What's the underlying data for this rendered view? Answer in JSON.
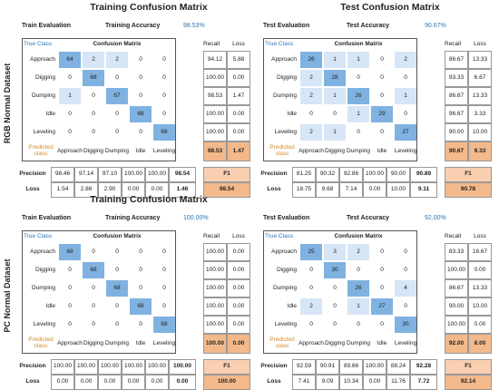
{
  "row_labels": [
    "RGB Normal Dataset",
    "PC Normal Dataset"
  ],
  "labels": {
    "true_class": "True Class",
    "matrix": "Confusion Matrix",
    "recall": "Recall",
    "loss": "Loss",
    "predicted": "Predicted class",
    "precision": "Precision",
    "f1": "F1"
  },
  "classes": [
    "Approach",
    "Digging",
    "Dumping",
    "Idle",
    "Leveling"
  ],
  "panels": [
    {
      "title": "Training Confusion Matrix",
      "eval": "Train Evaluation",
      "acc_label": "Training Accuracy",
      "acc": "98.53%",
      "matrix": [
        [
          64,
          2,
          2,
          0,
          0
        ],
        [
          0,
          68,
          0,
          0,
          0
        ],
        [
          1,
          0,
          67,
          0,
          0
        ],
        [
          0,
          0,
          0,
          68,
          0
        ],
        [
          0,
          0,
          0,
          0,
          68
        ]
      ],
      "recall": [
        "94.12",
        "100.00",
        "98.53",
        "100.00",
        "100.00"
      ],
      "loss": [
        "5.88",
        "0.00",
        "1.47",
        "0.00",
        "0.00"
      ],
      "total_recall": "98.53",
      "total_loss": "1.47",
      "precision": [
        "98.46",
        "97.14",
        "97.10",
        "100.00",
        "100.00"
      ],
      "overall_precision": "98.54",
      "precision_loss": [
        "1.54",
        "2.86",
        "2.90",
        "0.00",
        "0.00"
      ],
      "overall_loss": "1.46",
      "f1": "98.54"
    },
    {
      "title": "Test Confusion Matrix",
      "eval": "Test Evaluation",
      "acc_label": "Test Accuracy",
      "acc": "90.67%",
      "matrix": [
        [
          26,
          1,
          1,
          0,
          2
        ],
        [
          2,
          28,
          0,
          0,
          0
        ],
        [
          2,
          1,
          26,
          0,
          1
        ],
        [
          0,
          0,
          1,
          29,
          0
        ],
        [
          2,
          1,
          0,
          0,
          27
        ]
      ],
      "recall": [
        "86.67",
        "93.33",
        "86.67",
        "96.67",
        "90.00"
      ],
      "loss": [
        "13.33",
        "6.67",
        "13.33",
        "3.33",
        "10.00"
      ],
      "total_recall": "90.67",
      "total_loss": "9.33",
      "precision": [
        "81.25",
        "90.32",
        "92.86",
        "100.00",
        "90.00"
      ],
      "overall_precision": "90.89",
      "precision_loss": [
        "18.75",
        "9.68",
        "7.14",
        "0.00",
        "10.00"
      ],
      "overall_loss": "9.11",
      "f1": "90.78"
    },
    {
      "title": "Training Confusion Matrix",
      "eval": "Train Evaluation",
      "acc_label": "Training Accuracy",
      "acc": "100.00%",
      "matrix": [
        [
          68,
          0,
          0,
          0,
          0
        ],
        [
          0,
          68,
          0,
          0,
          0
        ],
        [
          0,
          0,
          68,
          0,
          0
        ],
        [
          0,
          0,
          0,
          68,
          0
        ],
        [
          0,
          0,
          0,
          0,
          68
        ]
      ],
      "recall": [
        "100.00",
        "100.00",
        "100.00",
        "100.00",
        "100.00"
      ],
      "loss": [
        "0.00",
        "0.00",
        "0.00",
        "0.00",
        "0.00"
      ],
      "total_recall": "100.00",
      "total_loss": "0.00",
      "precision": [
        "100.00",
        "100.00",
        "100.00",
        "100.00",
        "100.00"
      ],
      "overall_precision": "100.00",
      "precision_loss": [
        "0.00",
        "0.00",
        "0.00",
        "0.00",
        "0.00"
      ],
      "overall_loss": "0.00",
      "f1": "100.00"
    },
    {
      "eval": "Test Evaluation",
      "acc_label": "Test Accuracy",
      "acc": "92.00%",
      "matrix": [
        [
          25,
          3,
          2,
          0,
          0
        ],
        [
          0,
          30,
          0,
          0,
          0
        ],
        [
          0,
          0,
          26,
          0,
          4
        ],
        [
          2,
          0,
          1,
          27,
          0
        ],
        [
          0,
          0,
          0,
          0,
          30
        ]
      ],
      "recall": [
        "83.33",
        "100.00",
        "86.67",
        "90.00",
        "100.00"
      ],
      "loss": [
        "16.67",
        "0.00",
        "13.33",
        "10.00",
        "0.00"
      ],
      "total_recall": "92.00",
      "total_loss": "8.00",
      "precision": [
        "92.59",
        "90.91",
        "89.66",
        "100.00",
        "88.24"
      ],
      "overall_precision": "92.28",
      "precision_loss": [
        "7.41",
        "9.09",
        "10.34",
        "0.00",
        "11.76"
      ],
      "overall_loss": "7.72",
      "f1": "92.14"
    }
  ]
}
